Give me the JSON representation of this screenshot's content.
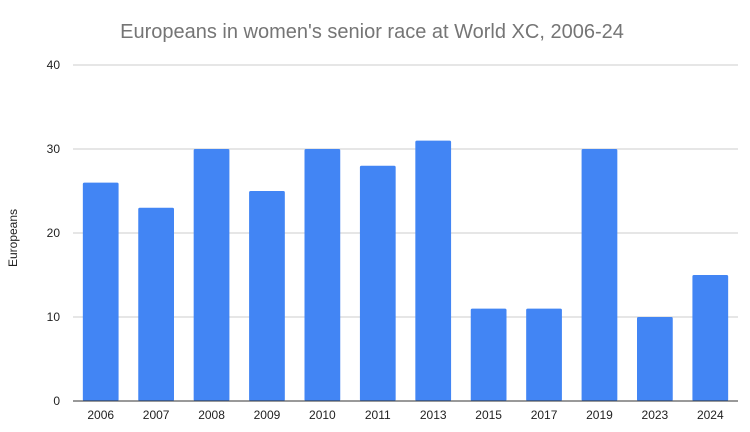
{
  "chart_data": {
    "type": "bar",
    "title": "Europeans in women's senior race at World XC, 2006-24",
    "xlabel": "",
    "ylabel": "Europeans",
    "categories": [
      "2006",
      "2007",
      "2008",
      "2009",
      "2010",
      "2011",
      "2013",
      "2015",
      "2017",
      "2019",
      "2023",
      "2024"
    ],
    "values": [
      26,
      23,
      30,
      25,
      30,
      28,
      31,
      11,
      11,
      30,
      10,
      15
    ],
    "ylim": [
      0,
      40
    ],
    "yticks": [
      "0",
      "10",
      "20",
      "30",
      "40"
    ],
    "grid": true,
    "legend": "none",
    "colors": {
      "bar": "#4285f4",
      "grid": "#cccccc",
      "baseline": "#333333"
    }
  }
}
